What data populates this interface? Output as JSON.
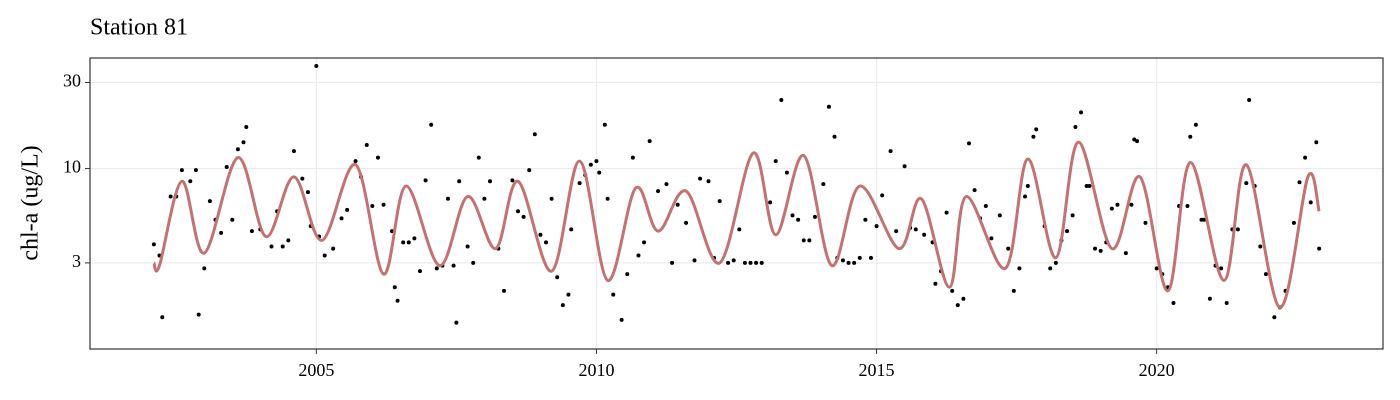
{
  "chart_data": {
    "type": "scatter",
    "title": "Station 81",
    "ylabel": "chl-a (ug/L)",
    "log_y": true,
    "grid": true,
    "xlim": [
      2000.96,
      2024.04
    ],
    "xticks": [
      2005,
      2010,
      2015,
      2020
    ],
    "ylim": [
      1,
      41
    ],
    "yticks": [
      3,
      10,
      30
    ],
    "series": [
      {
        "type": "scatter",
        "color": "#000000",
        "x": [
          2002.1,
          2002.2,
          2002.25,
          2002.4,
          2002.5,
          2002.6,
          2002.75,
          2002.85,
          2002.9,
          2003.0,
          2003.1,
          2003.2,
          2003.3,
          2003.4,
          2003.5,
          2003.6,
          2003.7,
          2003.75,
          2003.85,
          2004.0,
          2004.2,
          2004.3,
          2004.4,
          2004.5,
          2004.6,
          2004.75,
          2004.85,
          2004.9,
          2005.0,
          2005.05,
          2005.15,
          2005.3,
          2005.45,
          2005.55,
          2005.7,
          2005.8,
          2005.9,
          2006.0,
          2006.1,
          2006.2,
          2006.35,
          2006.4,
          2006.45,
          2006.55,
          2006.65,
          2006.75,
          2006.85,
          2006.95,
          2007.05,
          2007.15,
          2007.25,
          2007.35,
          2007.45,
          2007.5,
          2007.55,
          2007.7,
          2007.8,
          2007.9,
          2008.0,
          2008.1,
          2008.25,
          2008.35,
          2008.5,
          2008.6,
          2008.7,
          2008.8,
          2008.9,
          2009.0,
          2009.1,
          2009.2,
          2009.3,
          2009.4,
          2009.5,
          2009.55,
          2009.7,
          2009.8,
          2009.9,
          2010.0,
          2010.05,
          2010.15,
          2010.2,
          2010.3,
          2010.45,
          2010.55,
          2010.65,
          2010.75,
          2010.85,
          2010.95,
          2011.1,
          2011.25,
          2011.35,
          2011.45,
          2011.6,
          2011.75,
          2011.85,
          2012.0,
          2012.1,
          2012.2,
          2012.35,
          2012.45,
          2012.55,
          2012.65,
          2012.75,
          2012.85,
          2012.95,
          2013.1,
          2013.2,
          2013.3,
          2013.4,
          2013.5,
          2013.6,
          2013.7,
          2013.8,
          2013.9,
          2014.05,
          2014.15,
          2014.25,
          2014.3,
          2014.4,
          2014.5,
          2014.6,
          2014.7,
          2014.8,
          2014.9,
          2015.0,
          2015.1,
          2015.25,
          2015.35,
          2015.5,
          2015.6,
          2015.7,
          2015.85,
          2016.0,
          2016.05,
          2016.15,
          2016.25,
          2016.35,
          2016.45,
          2016.55,
          2016.65,
          2016.75,
          2016.85,
          2016.95,
          2017.05,
          2017.2,
          2017.35,
          2017.45,
          2017.55,
          2017.65,
          2017.7,
          2017.8,
          2017.85,
          2018.0,
          2018.1,
          2018.2,
          2018.3,
          2018.4,
          2018.5,
          2018.55,
          2018.65,
          2018.75,
          2018.8,
          2018.9,
          2019.0,
          2019.1,
          2019.2,
          2019.3,
          2019.45,
          2019.55,
          2019.6,
          2019.65,
          2019.8,
          2020.0,
          2020.1,
          2020.2,
          2020.3,
          2020.4,
          2020.55,
          2020.6,
          2020.7,
          2020.8,
          2020.85,
          2020.95,
          2021.05,
          2021.15,
          2021.25,
          2021.35,
          2021.45,
          2021.6,
          2021.65,
          2021.75,
          2021.85,
          2021.95,
          2022.1,
          2022.2,
          2022.3,
          2022.45,
          2022.55,
          2022.65,
          2022.75,
          2022.85,
          2022.9
        ],
        "values": [
          3.8,
          3.3,
          1.5,
          7,
          7,
          9.8,
          8.5,
          9.8,
          1.55,
          2.8,
          6.6,
          5.2,
          4.4,
          10.2,
          5.2,
          12.8,
          14,
          17,
          4.5,
          4.6,
          3.7,
          5.8,
          3.7,
          4.0,
          12.5,
          8.8,
          7.4,
          4.8,
          37,
          4.2,
          3.3,
          3.6,
          5.3,
          5.9,
          11,
          9,
          13.5,
          6.2,
          11.5,
          6.3,
          4.5,
          2.2,
          1.85,
          3.9,
          3.9,
          4.1,
          2.7,
          8.6,
          17.5,
          2.8,
          2.9,
          6.8,
          2.9,
          1.4,
          8.5,
          3.7,
          3.0,
          11.5,
          6.8,
          8.5,
          3.6,
          2.1,
          8.6,
          5.8,
          5.4,
          9.8,
          15.5,
          4.3,
          3.9,
          6.8,
          2.5,
          1.75,
          2.0,
          4.6,
          8.3,
          9.2,
          10.5,
          11,
          9.5,
          17.5,
          6.8,
          2.0,
          1.45,
          2.6,
          11.5,
          3.3,
          3.9,
          14.2,
          7.5,
          8.2,
          3.0,
          6.3,
          5.0,
          3.1,
          8.8,
          8.5,
          3.2,
          6.6,
          3.0,
          3.1,
          4.6,
          3.0,
          3.0,
          3.0,
          3.0,
          6.5,
          11,
          24,
          9.5,
          5.5,
          5.2,
          4.0,
          4.0,
          5.4,
          8.2,
          22,
          15,
          3.2,
          3.1,
          3.0,
          3.0,
          3.2,
          5.2,
          3.2,
          4.8,
          7.1,
          12.5,
          4.5,
          10.3,
          4.7,
          4.6,
          4.3,
          3.9,
          2.3,
          2.7,
          5.7,
          2.1,
          1.75,
          1.9,
          13.8,
          7.6,
          5.3,
          6.2,
          4.1,
          5.5,
          3.6,
          2.1,
          2.8,
          7.0,
          8.0,
          15,
          16.5,
          4.8,
          2.8,
          3.0,
          4.0,
          4.5,
          5.5,
          17,
          20.5,
          8.0,
          8.0,
          3.6,
          3.5,
          3.9,
          6.0,
          6.3,
          3.4,
          6.3,
          14.5,
          14.2,
          5.0,
          2.8,
          2.6,
          2.2,
          1.8,
          6.2,
          6.2,
          15,
          17.5,
          5.2,
          5.2,
          1.9,
          2.9,
          2.8,
          1.8,
          4.6,
          4.6,
          8.3,
          24,
          8.0,
          3.7,
          2.6,
          1.5,
          1.7,
          2.1,
          5.0,
          8.4,
          11.5,
          6.5,
          14,
          3.6
        ]
      },
      {
        "type": "line",
        "color": "#c27272",
        "x": [
          2002.1,
          2002.2,
          2002.6,
          2003.0,
          2003.6,
          2004.1,
          2004.6,
          2005.1,
          2005.7,
          2006.2,
          2006.6,
          2007.2,
          2007.7,
          2008.2,
          2008.6,
          2009.2,
          2009.7,
          2010.2,
          2010.7,
          2011.1,
          2011.6,
          2012.2,
          2012.8,
          2013.2,
          2013.7,
          2014.2,
          2014.7,
          2015.4,
          2015.8,
          2016.3,
          2016.6,
          2017.3,
          2017.7,
          2018.2,
          2018.6,
          2019.2,
          2019.7,
          2020.2,
          2020.6,
          2021.2,
          2021.6,
          2022.2,
          2022.7,
          2022.9
        ],
        "values": [
          3.0,
          2.9,
          8.5,
          3.4,
          11.5,
          4.2,
          9,
          4,
          10.5,
          2.6,
          8,
          2.9,
          7,
          3.6,
          8.5,
          2.7,
          11,
          2.4,
          7.8,
          4.5,
          7.5,
          3.0,
          12.2,
          4.3,
          11.8,
          2.9,
          8,
          3.6,
          6.8,
          2.2,
          7,
          2.8,
          11.3,
          3.2,
          14,
          3.6,
          9,
          2.1,
          10.8,
          2.4,
          10.5,
          1.7,
          9,
          5.8
        ]
      }
    ]
  }
}
